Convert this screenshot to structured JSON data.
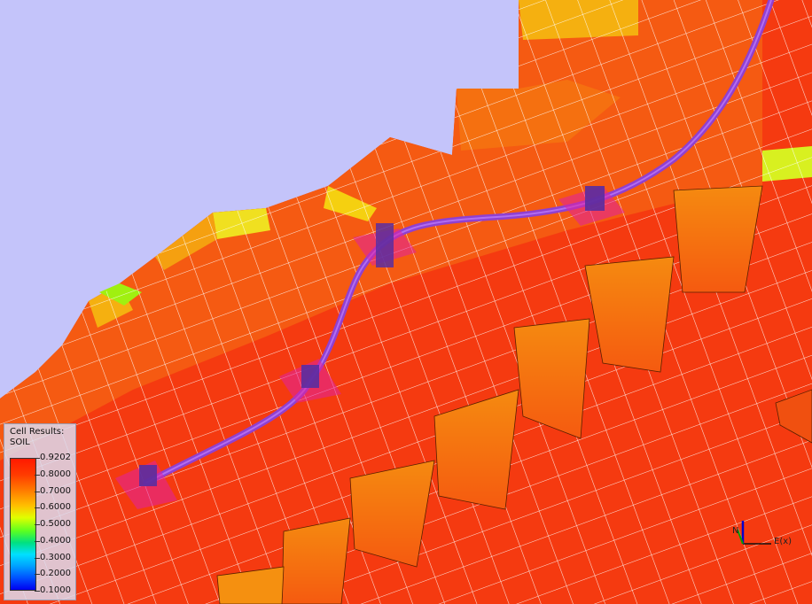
{
  "legend": {
    "title_line1": "Cell Results:",
    "title_line2": "SOIL",
    "ticks": [
      "0.9202",
      "0.8000",
      "0.7000",
      "0.6000",
      "0.5000",
      "0.4000",
      "0.3000",
      "0.2000",
      "0.1000"
    ]
  },
  "axis": {
    "e_label": "E(x)",
    "n_label": "N"
  },
  "colors": {
    "background": "#c4c4fa",
    "cell_red": "#f53a10",
    "cell_orange": "#f57010",
    "cell_yellow": "#f5d010",
    "cell_lime": "#c8f010",
    "well_path": "#8a2be2",
    "grid_lines": "#ffffff"
  },
  "icons": [
    "well-path-icon",
    "completion-marker-icon",
    "axis-cross-icon"
  ]
}
